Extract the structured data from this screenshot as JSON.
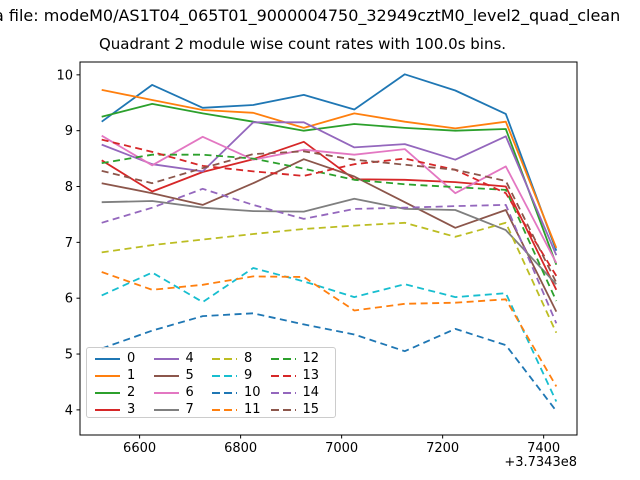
{
  "title_line1": "a file: modeM0/AS1T04_065T01_9000004750_32949cztM0_level2_quad_clean",
  "title_line2": "Quadrant 2 module wise count rates with 100.0s bins.",
  "chart_data": {
    "type": "line",
    "title": "Quadrant 2 module wise count rates with 100.0s bins.",
    "xlabel": "",
    "ylabel": "",
    "x_offset_label": "+3.7343e8",
    "xticks": [
      6600,
      6800,
      7000,
      7200,
      7400
    ],
    "yticks": [
      4,
      5,
      6,
      7,
      8,
      9,
      10
    ],
    "xlim": [
      6482,
      7466
    ],
    "ylim": [
      3.55,
      10.23
    ],
    "grid": false,
    "legend_position": "lower left",
    "x": [
      6525,
      6625,
      6725,
      6825,
      6925,
      7025,
      7125,
      7225,
      7325,
      7425
    ],
    "series": [
      {
        "name": "0",
        "color": "#1f77b4",
        "style": "solid",
        "values": [
          9.16,
          9.82,
          9.41,
          9.46,
          9.64,
          9.38,
          10.01,
          9.72,
          9.3,
          6.85
        ]
      },
      {
        "name": "1",
        "color": "#ff7f0e",
        "style": "solid",
        "values": [
          9.73,
          9.55,
          9.37,
          9.32,
          9.05,
          9.31,
          9.16,
          9.04,
          9.16,
          6.9
        ]
      },
      {
        "name": "2",
        "color": "#2ca02c",
        "style": "solid",
        "values": [
          9.25,
          9.48,
          9.31,
          9.16,
          9.0,
          9.12,
          9.05,
          9.0,
          9.03,
          6.6
        ]
      },
      {
        "name": "3",
        "color": "#d62728",
        "style": "solid",
        "values": [
          8.47,
          7.91,
          8.26,
          8.49,
          8.8,
          8.13,
          8.12,
          8.08,
          8.0,
          6.15
        ]
      },
      {
        "name": "4",
        "color": "#9467bd",
        "style": "solid",
        "values": [
          8.75,
          8.4,
          8.27,
          9.15,
          9.15,
          8.7,
          8.76,
          8.48,
          8.9,
          6.77
        ]
      },
      {
        "name": "5",
        "color": "#8c564b",
        "style": "solid",
        "values": [
          8.06,
          7.88,
          7.67,
          8.06,
          8.49,
          8.18,
          7.72,
          7.26,
          7.58,
          5.76
        ]
      },
      {
        "name": "6",
        "color": "#e377c2",
        "style": "solid",
        "values": [
          8.91,
          8.38,
          8.89,
          8.48,
          8.66,
          8.57,
          8.67,
          7.88,
          8.36,
          6.63
        ]
      },
      {
        "name": "7",
        "color": "#7f7f7f",
        "style": "solid",
        "values": [
          7.72,
          7.74,
          7.62,
          7.56,
          7.55,
          7.78,
          7.6,
          7.58,
          7.22,
          6.25
        ]
      },
      {
        "name": "8",
        "color": "#bcbd22",
        "style": "dashed",
        "values": [
          6.82,
          6.95,
          7.05,
          7.15,
          7.24,
          7.3,
          7.35,
          7.1,
          7.35,
          5.38
        ]
      },
      {
        "name": "9",
        "color": "#17becf",
        "style": "dashed",
        "values": [
          6.05,
          6.46,
          5.93,
          6.54,
          6.3,
          6.02,
          6.25,
          6.02,
          6.09,
          4.15
        ]
      },
      {
        "name": "10",
        "color": "#1f77b4",
        "style": "dashed",
        "values": [
          5.1,
          5.42,
          5.68,
          5.73,
          5.53,
          5.35,
          5.05,
          5.45,
          5.16,
          3.98
        ]
      },
      {
        "name": "11",
        "color": "#ff7f0e",
        "style": "dashed",
        "values": [
          6.47,
          6.15,
          6.24,
          6.39,
          6.38,
          5.78,
          5.9,
          5.92,
          5.98,
          4.42
        ]
      },
      {
        "name": "12",
        "color": "#2ca02c",
        "style": "dashed",
        "values": [
          8.42,
          8.57,
          8.57,
          8.5,
          8.32,
          8.12,
          8.04,
          7.99,
          7.94,
          5.95
        ]
      },
      {
        "name": "13",
        "color": "#d62728",
        "style": "dashed",
        "values": [
          8.84,
          8.62,
          8.37,
          8.27,
          8.19,
          8.4,
          8.5,
          8.3,
          7.88,
          6.4
        ]
      },
      {
        "name": "14",
        "color": "#9467bd",
        "style": "dashed",
        "values": [
          7.35,
          7.62,
          7.96,
          7.67,
          7.42,
          7.6,
          7.62,
          7.65,
          7.67,
          5.55
        ]
      },
      {
        "name": "15",
        "color": "#8c564b",
        "style": "dashed",
        "values": [
          8.28,
          8.06,
          8.33,
          8.58,
          8.63,
          8.48,
          8.39,
          8.3,
          8.1,
          6.28
        ]
      }
    ]
  }
}
